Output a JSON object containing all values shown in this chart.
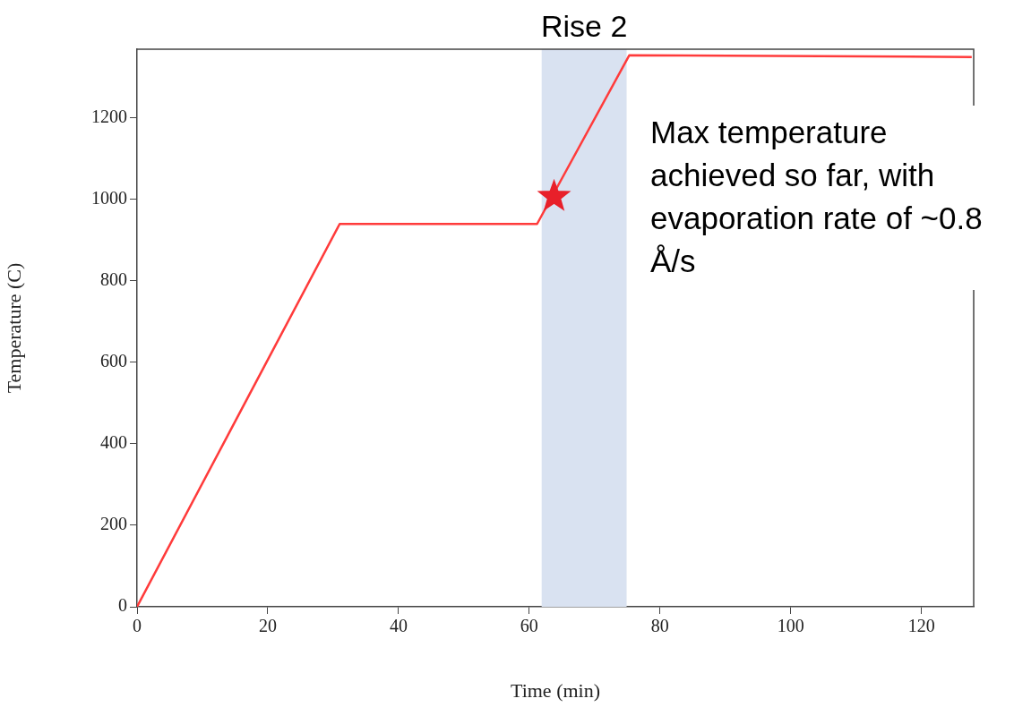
{
  "chart_data": {
    "type": "line",
    "xlabel": "Time (min)",
    "ylabel": "Temperature (C)",
    "xlim": [
      0,
      128
    ],
    "xticks": [
      0,
      20,
      40,
      60,
      80,
      100,
      120
    ],
    "ylim": [
      0,
      1369
    ],
    "yticks": [
      0,
      200,
      400,
      600,
      800,
      1000,
      1200
    ],
    "grid": false,
    "legend": false,
    "marker": "none",
    "line_style": "solid",
    "series": [
      {
        "color": "#ff3b3b",
        "x": [
          0,
          31,
          61.2,
          75.3,
          127.7
        ],
        "values": [
          0,
          940,
          940,
          1354,
          1350
        ]
      },
      {
        "type": "scatter",
        "marker": "star",
        "color": "#e8202a",
        "x": [
          63.8
        ],
        "values": [
          1007
        ]
      }
    ],
    "bands": [
      {
        "axis": "x",
        "from": 61.9,
        "to": 74.9,
        "label": "Rise 2",
        "color": "#d9e2f1"
      }
    ],
    "annotations": [
      "Max temperature achieved so far, with evaporation rate of ~0.8 Å/s"
    ]
  }
}
